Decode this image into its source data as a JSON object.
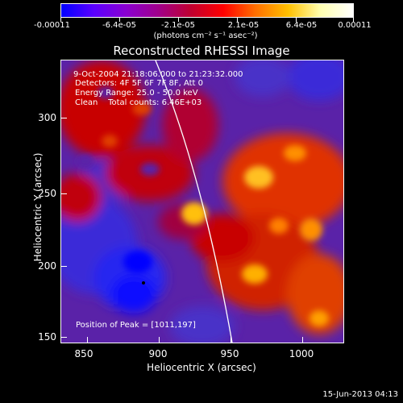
{
  "colorbar": {
    "tick_labels": [
      "-0.00011",
      "-6.4e-05",
      "-2.1e-05",
      "2.1e-05",
      "6.4e-05",
      "0.00011"
    ],
    "units_label": "(photons cm⁻² s⁻¹ asec⁻²)",
    "colors": [
      "#0000ff",
      "#5a00ff",
      "#8a00d0",
      "#a0008a",
      "#c00030",
      "#ff0000",
      "#ff7000",
      "#ffc000",
      "#ffffb0",
      "#ffffff"
    ]
  },
  "title": "Reconstructed RHESSI Image",
  "info": {
    "time_range": "9-Oct-2004 21:18:06.000 to 21:23:32.000",
    "detectors": "Detectors: 4F 5F 6F 7F 8F, Att 0",
    "energy_range": "Energy Range: 25.0 - 50.0 keV",
    "clean_counts": "Clean    Total counts: 6.46E+03",
    "peak_position": "Position of Peak = [1011,197]"
  },
  "axes": {
    "xlabel": "Heliocentric X (arcsec)",
    "ylabel": "Heliocentric Y (arcsec)",
    "x_ticks": [
      "850",
      "900",
      "950",
      "1000"
    ],
    "y_ticks": [
      "300",
      "250",
      "200",
      "150"
    ],
    "x_range": [
      834,
      1026
    ],
    "y_range": [
      147,
      339
    ]
  },
  "footer_timestamp": "15-Jun-2013 04:13"
}
